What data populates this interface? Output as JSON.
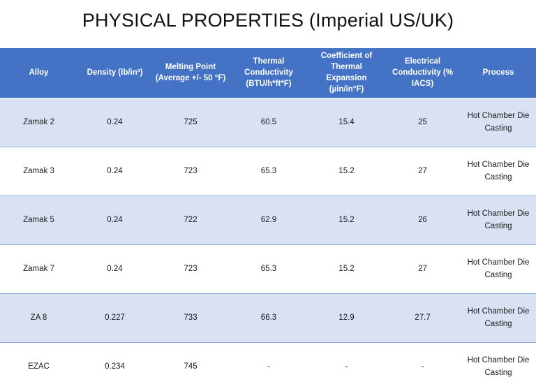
{
  "title": "PHYSICAL PROPERTIES (Imperial US/UK)",
  "columns": [
    "Alloy",
    "Density (lb/in³)",
    "Melting Point (Average +/- 50 °F)",
    "Thermal Conductivity (BTU/h*ft*F)",
    "Coefficient of Thermal Expansion (µin/in°F)",
    "Electrical Conductivity (% IACS)",
    "Process"
  ],
  "rows": [
    [
      "Zamak 2",
      "0.24",
      "725",
      "60.5",
      "15.4",
      "25",
      "Hot Chamber Die Casting"
    ],
    [
      "Zamak 3",
      "0.24",
      "723",
      "65.3",
      "15.2",
      "27",
      "Hot Chamber Die Casting"
    ],
    [
      "Zamak 5",
      "0.24",
      "722",
      "62.9",
      "15.2",
      "26",
      "Hot Chamber Die Casting"
    ],
    [
      "Zamak 7",
      "0.24",
      "723",
      "65.3",
      "15.2",
      "27",
      "Hot Chamber Die Casting"
    ],
    [
      "ZA 8",
      "0.227",
      "733",
      "66.3",
      "12.9",
      "27.7",
      "Hot Chamber Die Casting"
    ],
    [
      "EZAC",
      "0.234",
      "745",
      "-",
      "-",
      "-",
      "Hot Chamber Die Casting"
    ]
  ],
  "colors": {
    "header_bg": "#4472c4",
    "header_text": "#ffffff",
    "band_row": "#d9e1f2",
    "plain_row": "#ffffff",
    "row_rule": "#8eaadb"
  }
}
